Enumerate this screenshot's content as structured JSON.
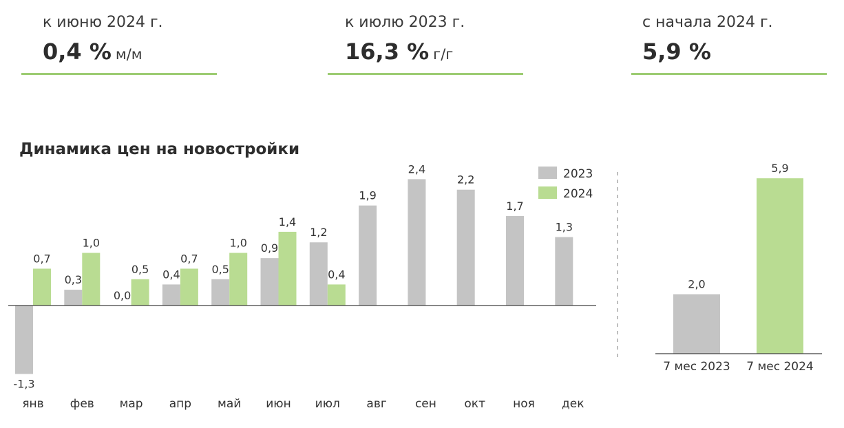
{
  "kpis": [
    {
      "label": "к июню 2024 г.",
      "value": "0,4 %",
      "unit": "м/м"
    },
    {
      "label": "к июлю 2023 г.",
      "value": "16,3 %",
      "unit": "г/г"
    },
    {
      "label": "с начала 2024 г.",
      "value": "5,9 %",
      "unit": ""
    }
  ],
  "colors": {
    "series_2023": "#c4c4c4",
    "series_2024": "#b9dc92",
    "kpi_line": "#9dcc73",
    "axis": "#404040"
  },
  "chart_data": [
    {
      "type": "bar",
      "title": "Динамика цен на новостройки",
      "categories": [
        "янв",
        "фев",
        "мар",
        "апр",
        "май",
        "июн",
        "июл",
        "авг",
        "сен",
        "окт",
        "ноя",
        "дек"
      ],
      "series": [
        {
          "name": "2023",
          "values": [
            -1.3,
            0.3,
            0.0,
            0.4,
            0.5,
            0.9,
            1.2,
            1.9,
            2.4,
            2.2,
            1.7,
            1.3
          ],
          "labels": [
            "-1,3",
            "0,3",
            "0,0",
            "0,4",
            "0,5",
            "0,9",
            "1,2",
            "1,9",
            "2,4",
            "2,2",
            "1,7",
            "1,3"
          ]
        },
        {
          "name": "2024",
          "values": [
            0.7,
            1.0,
            0.5,
            0.7,
            1.0,
            1.4,
            0.4,
            null,
            null,
            null,
            null,
            null
          ],
          "labels": [
            "0,7",
            "1,0",
            "0,5",
            "0,7",
            "1,0",
            "1,4",
            "0,4",
            "",
            "",
            "",
            "",
            ""
          ]
        }
      ],
      "legend": "top-right",
      "grid": false
    },
    {
      "type": "bar",
      "categories": [
        "7 мес 2023",
        "7 мес 2024"
      ],
      "values": [
        2.0,
        5.9
      ],
      "labels": [
        "2,0",
        "5,9"
      ],
      "grid": false
    }
  ]
}
